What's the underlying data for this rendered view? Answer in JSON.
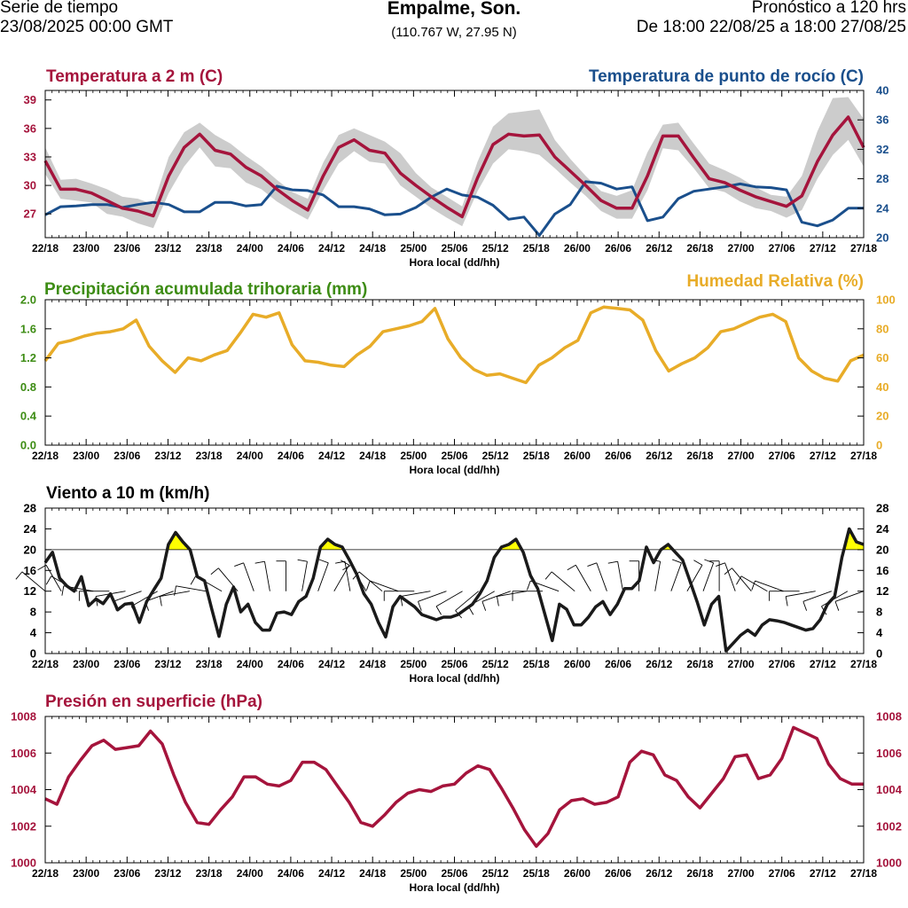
{
  "header": {
    "left_line1": "Serie de tiempo",
    "left_line2": "23/08/2025 00:00 GMT",
    "title": "Empalme, Son.",
    "coords": "(110.767 W, 27.95 N)",
    "right_line1": "Pronóstico a 120 hrs",
    "right_line2": "De 18:00 22/08/25 a 18:00 27/08/25"
  },
  "colors": {
    "temperature": "#a5143c",
    "dewpoint": "#1a4f8c",
    "precip": "#3d8c14",
    "humidity": "#e8ac28",
    "wind": "#1a1a1a",
    "wind_fill": "#ffff00",
    "pressure": "#a5143c",
    "spread": "#cccccc"
  },
  "x_axis": {
    "ticks": [
      "22/18",
      "23/00",
      "23/06",
      "23/12",
      "23/18",
      "24/00",
      "24/06",
      "24/12",
      "24/18",
      "25/00",
      "25/06",
      "25/12",
      "25/18",
      "26/00",
      "26/06",
      "26/12",
      "26/18",
      "27/00",
      "27/06",
      "27/12",
      "27/18"
    ],
    "label": "Hora local (dd/hh)"
  },
  "chart_data": [
    {
      "type": "line",
      "title": "Temperatura a 2 m (C)",
      "title_right": "Temperatura de punto de rocío (C)",
      "x_step_hours": 3,
      "yticks_left": [
        "39",
        "36",
        "33",
        "30",
        "27"
      ],
      "yticks_right": [
        "40",
        "36",
        "32",
        "28",
        "24",
        "20"
      ],
      "ylim_left": [
        24.5,
        40
      ],
      "ylim_right": [
        20,
        40
      ],
      "series": [
        {
          "name": "Temperatura a 2 m (C)",
          "axis": "left",
          "values": [
            32.6,
            29.6,
            29.6,
            29.2,
            28.4,
            27.6,
            27.3,
            26.8,
            31.0,
            34.0,
            35.4,
            33.7,
            33.3,
            31.9,
            31.0,
            29.6,
            28.4,
            27.4,
            31.0,
            34.0,
            34.8,
            33.7,
            33.4,
            31.3,
            30.0,
            28.8,
            27.7,
            26.7,
            30.8,
            34.3,
            35.4,
            35.2,
            35.3,
            33.0,
            31.5,
            30.0,
            28.4,
            27.6,
            27.6,
            31.0,
            35.2,
            35.2,
            32.9,
            30.7,
            30.3,
            29.5,
            28.8,
            28.3,
            27.8,
            28.9,
            32.5,
            35.3,
            37.2,
            34.0
          ]
        },
        {
          "name": "Temperatura de punto de rocío (C)",
          "axis": "right",
          "values": [
            23.1,
            24.2,
            24.3,
            24.5,
            24.5,
            24.1,
            24.5,
            24.8,
            24.5,
            23.5,
            23.5,
            24.8,
            24.8,
            24.3,
            24.5,
            27.0,
            26.5,
            26.4,
            25.8,
            24.2,
            24.2,
            23.9,
            23.1,
            23.2,
            24.1,
            25.5,
            26.6,
            25.8,
            25.5,
            24.4,
            22.5,
            22.8,
            20.3,
            23.2,
            24.5,
            27.6,
            27.4,
            26.6,
            26.9,
            22.3,
            22.8,
            25.3,
            26.3,
            26.6,
            26.9,
            27.3,
            26.9,
            26.8,
            26.5,
            22.1,
            21.6,
            22.4,
            24.0,
            24.0
          ]
        }
      ],
      "spread": {
        "upper": [
          34.0,
          30.6,
          30.7,
          30.2,
          29.6,
          28.8,
          28.6,
          28.0,
          33.0,
          35.6,
          36.6,
          35.3,
          34.4,
          33.1,
          32.0,
          30.6,
          29.3,
          28.6,
          32.4,
          35.3,
          36.0,
          35.3,
          34.6,
          33.4,
          31.3,
          29.8,
          28.8,
          27.8,
          32.5,
          36.2,
          37.6,
          37.8,
          38.0,
          34.8,
          32.8,
          31.0,
          29.4,
          28.9,
          29.5,
          33.5,
          36.4,
          36.6,
          34.4,
          32.3,
          31.6,
          30.8,
          29.8,
          29.0,
          28.8,
          31.0,
          35.7,
          39.2,
          39.3,
          37.0
        ],
        "lower": [
          31.2,
          28.6,
          28.4,
          28.2,
          27.0,
          26.7,
          26.0,
          25.5,
          29.2,
          32.0,
          34.0,
          32.0,
          31.8,
          30.3,
          29.6,
          28.3,
          27.3,
          26.4,
          29.5,
          32.3,
          33.6,
          32.5,
          32.3,
          30.0,
          28.8,
          27.6,
          26.6,
          25.7,
          29.4,
          32.3,
          33.8,
          33.6,
          33.2,
          31.8,
          30.3,
          28.9,
          27.3,
          26.5,
          26.5,
          29.5,
          33.9,
          33.7,
          31.8,
          29.7,
          29.3,
          28.3,
          27.6,
          27.3,
          26.6,
          27.4,
          30.7,
          33.2,
          34.8,
          32.0
        ]
      }
    },
    {
      "type": "line",
      "title": "Precipitación acumulada trihoraria (mm)",
      "title_right": "Humedad Relativa (%)",
      "x_step_hours": 3,
      "yticks_left": [
        "2.0",
        "1.6",
        "1.2",
        "0.8",
        "0.4",
        "0.0"
      ],
      "yticks_right": [
        "100",
        "80",
        "60",
        "40",
        "20",
        "0"
      ],
      "ylim_left": [
        0,
        2
      ],
      "ylim_right": [
        0,
        100
      ],
      "series": [
        {
          "name": "Humedad Relativa (%)",
          "axis": "right",
          "values": [
            58,
            70,
            72,
            75,
            77,
            78,
            80,
            86,
            68,
            58,
            50,
            60,
            58,
            62,
            65,
            77,
            90,
            88,
            91,
            69,
            58,
            57,
            55,
            54,
            62,
            68,
            78,
            80,
            82,
            85,
            94,
            73,
            60,
            52,
            48,
            49,
            46,
            43,
            55,
            60,
            67,
            72,
            91,
            95,
            94,
            93,
            86,
            65,
            51,
            56,
            60,
            67,
            78,
            80,
            84,
            88,
            90,
            85,
            60,
            51,
            46,
            44,
            58,
            62
          ]
        }
      ],
      "precipitation_values": []
    },
    {
      "type": "line",
      "title": "Viento a 10 m (km/h)",
      "x_step_hours": 3,
      "yticks": [
        "28",
        "24",
        "20",
        "16",
        "12",
        "8",
        "4",
        "0"
      ],
      "ylim": [
        0,
        28
      ],
      "reference_line": 20,
      "series": [
        {
          "name": "Viento a 10 m (km/h)",
          "values": [
            17.5,
            19.5,
            14.5,
            13.0,
            12.0,
            14.8,
            9.2,
            10.5,
            9.6,
            11.5,
            8.4,
            9.5,
            9.7,
            6.0,
            10.0,
            12.3,
            14.5,
            21.0,
            23.3,
            21.5,
            20.0,
            14.8,
            14.0,
            8.5,
            3.3,
            9.5,
            12.8,
            8.0,
            9.5,
            6.0,
            4.5,
            4.5,
            7.8,
            8.0,
            7.5,
            10.0,
            11.0,
            14.5,
            20.5,
            22.0,
            21.0,
            20.5,
            18.0,
            15.3,
            11.5,
            9.5,
            6.0,
            3.2,
            9.0,
            11.0,
            10.0,
            9.0,
            7.5,
            7.0,
            6.5,
            7.0,
            7.0,
            7.5,
            8.5,
            9.5,
            11.5,
            14.0,
            18.5,
            20.5,
            21.0,
            22.0,
            19.5,
            15.0,
            12.5,
            7.5,
            2.5,
            9.5,
            8.5,
            5.5,
            5.5,
            7.0,
            9.0,
            10.0,
            7.5,
            9.5,
            12.5,
            12.5,
            14.0,
            20.5,
            17.5,
            20.0,
            21.0,
            19.5,
            18.0,
            14.0,
            10.0,
            5.5,
            9.5,
            11.0,
            0.5,
            2.0,
            3.5,
            4.5,
            3.5,
            5.5,
            6.5,
            6.3,
            6.0,
            5.5,
            5.0,
            4.5,
            4.8,
            6.5,
            9.5,
            11.0,
            18.5,
            24.0,
            21.5,
            21.0
          ]
        }
      ],
      "barb_directions_deg": [
        310,
        330,
        300,
        280,
        270,
        260,
        250,
        240,
        250,
        260,
        280,
        300,
        320,
        340,
        350,
        0,
        10,
        20,
        30,
        350,
        330,
        310,
        290,
        270,
        260,
        250,
        240,
        230,
        240,
        250,
        260,
        270,
        290,
        310,
        330,
        340,
        350,
        0,
        10,
        20,
        30,
        20,
        0,
        340,
        320,
        300,
        290,
        270,
        260,
        250,
        240,
        250
      ]
    },
    {
      "type": "line",
      "title": "Presión en superficie (hPa)",
      "x_step_hours": 3,
      "yticks": [
        "1008",
        "1006",
        "1004",
        "1002",
        "1000"
      ],
      "ylim": [
        1000,
        1008
      ],
      "series": [
        {
          "name": "Presión en superficie (hPa)",
          "values": [
            1003.5,
            1003.2,
            1004.7,
            1005.6,
            1006.4,
            1006.7,
            1006.2,
            1006.3,
            1006.4,
            1007.2,
            1006.5,
            1004.8,
            1003.3,
            1002.2,
            1002.1,
            1002.9,
            1003.6,
            1004.7,
            1004.7,
            1004.3,
            1004.2,
            1004.5,
            1005.5,
            1005.5,
            1005.1,
            1004.2,
            1003.3,
            1002.2,
            1002.0,
            1002.6,
            1003.3,
            1003.8,
            1004.0,
            1003.9,
            1004.2,
            1004.3,
            1004.9,
            1005.3,
            1005.1,
            1004.1,
            1003.0,
            1001.8,
            1000.9,
            1001.6,
            1002.9,
            1003.4,
            1003.5,
            1003.2,
            1003.3,
            1003.6,
            1005.5,
            1006.1,
            1005.9,
            1004.8,
            1004.5,
            1003.6,
            1003.0,
            1003.8,
            1004.6,
            1005.8,
            1005.9,
            1004.6,
            1004.8,
            1005.7,
            1007.4,
            1007.1,
            1006.8,
            1005.4,
            1004.6,
            1004.3,
            1004.3
          ]
        }
      ]
    }
  ]
}
